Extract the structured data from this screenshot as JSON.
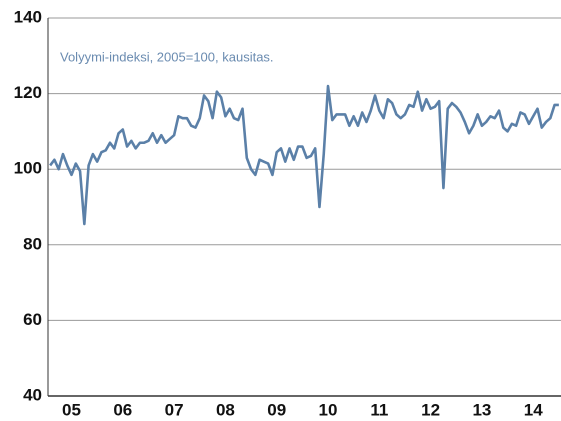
{
  "chart_data": {
    "type": "line",
    "annotation": "Volyymi-indeksi, 2005=100, kausitas.",
    "categories": [
      null,
      null,
      null,
      null,
      null,
      "05",
      null,
      null,
      null,
      null,
      null,
      null,
      null,
      null,
      null,
      null,
      null,
      "06",
      null,
      null,
      null,
      null,
      null,
      null,
      null,
      null,
      null,
      null,
      null,
      "07",
      null,
      null,
      null,
      null,
      null,
      null,
      null,
      null,
      null,
      null,
      null,
      "08",
      null,
      null,
      null,
      null,
      null,
      null,
      null,
      null,
      null,
      null,
      null,
      "09",
      null,
      null,
      null,
      null,
      null,
      null,
      null,
      null,
      null,
      null,
      null,
      "10",
      null,
      null,
      null,
      null,
      null,
      null,
      null,
      null,
      null,
      null,
      null,
      "11",
      null,
      null,
      null,
      null,
      null,
      null,
      null,
      null,
      null,
      null,
      null,
      "12",
      null,
      null,
      null,
      null,
      null,
      null,
      null,
      null,
      null,
      null,
      null,
      "13",
      null,
      null,
      null,
      null,
      null,
      null,
      null,
      null,
      null,
      null,
      null,
      "14",
      null,
      null,
      null,
      null,
      null,
      null
    ],
    "series": [
      {
        "color": "#5b80a8",
        "values": [
          101,
          102.5,
          100,
          104,
          101,
          98.5,
          101.5,
          99.5,
          85.5,
          101,
          104,
          102,
          104.5,
          105,
          107,
          105.5,
          109.5,
          110.5,
          106,
          107.5,
          105.5,
          107,
          107,
          107.5,
          109.5,
          107,
          109,
          107,
          108,
          109,
          114,
          113.5,
          113.5,
          111.5,
          111,
          113.5,
          119.5,
          118,
          113.5,
          120.5,
          119,
          114,
          116,
          113.5,
          113,
          116,
          103,
          100,
          98.5,
          102.5,
          102,
          101.5,
          98.5,
          104.5,
          105.5,
          102,
          105.5,
          102.5,
          106,
          106,
          103,
          103.5,
          105.5,
          90,
          104,
          122,
          113,
          114.5,
          114.5,
          114.5,
          111.5,
          114,
          111.5,
          115,
          112.5,
          115.5,
          119.5,
          115.5,
          113.5,
          118.5,
          117.5,
          114.5,
          113.5,
          114.5,
          117,
          116.5,
          120.5,
          115.5,
          118.5,
          116,
          116.5,
          118,
          95,
          116,
          117.5,
          116.5,
          115,
          112.5,
          109.5,
          111.5,
          114.5,
          111.5,
          112.5,
          114,
          113.5,
          115.5,
          111,
          110,
          112,
          111.5,
          115,
          114.5,
          112,
          114,
          116,
          111,
          112.5,
          113.5,
          117,
          117
        ]
      }
    ],
    "ylim": [
      40,
      140
    ],
    "yticks": [
      40,
      60,
      80,
      100,
      120,
      140
    ],
    "grid": true
  }
}
